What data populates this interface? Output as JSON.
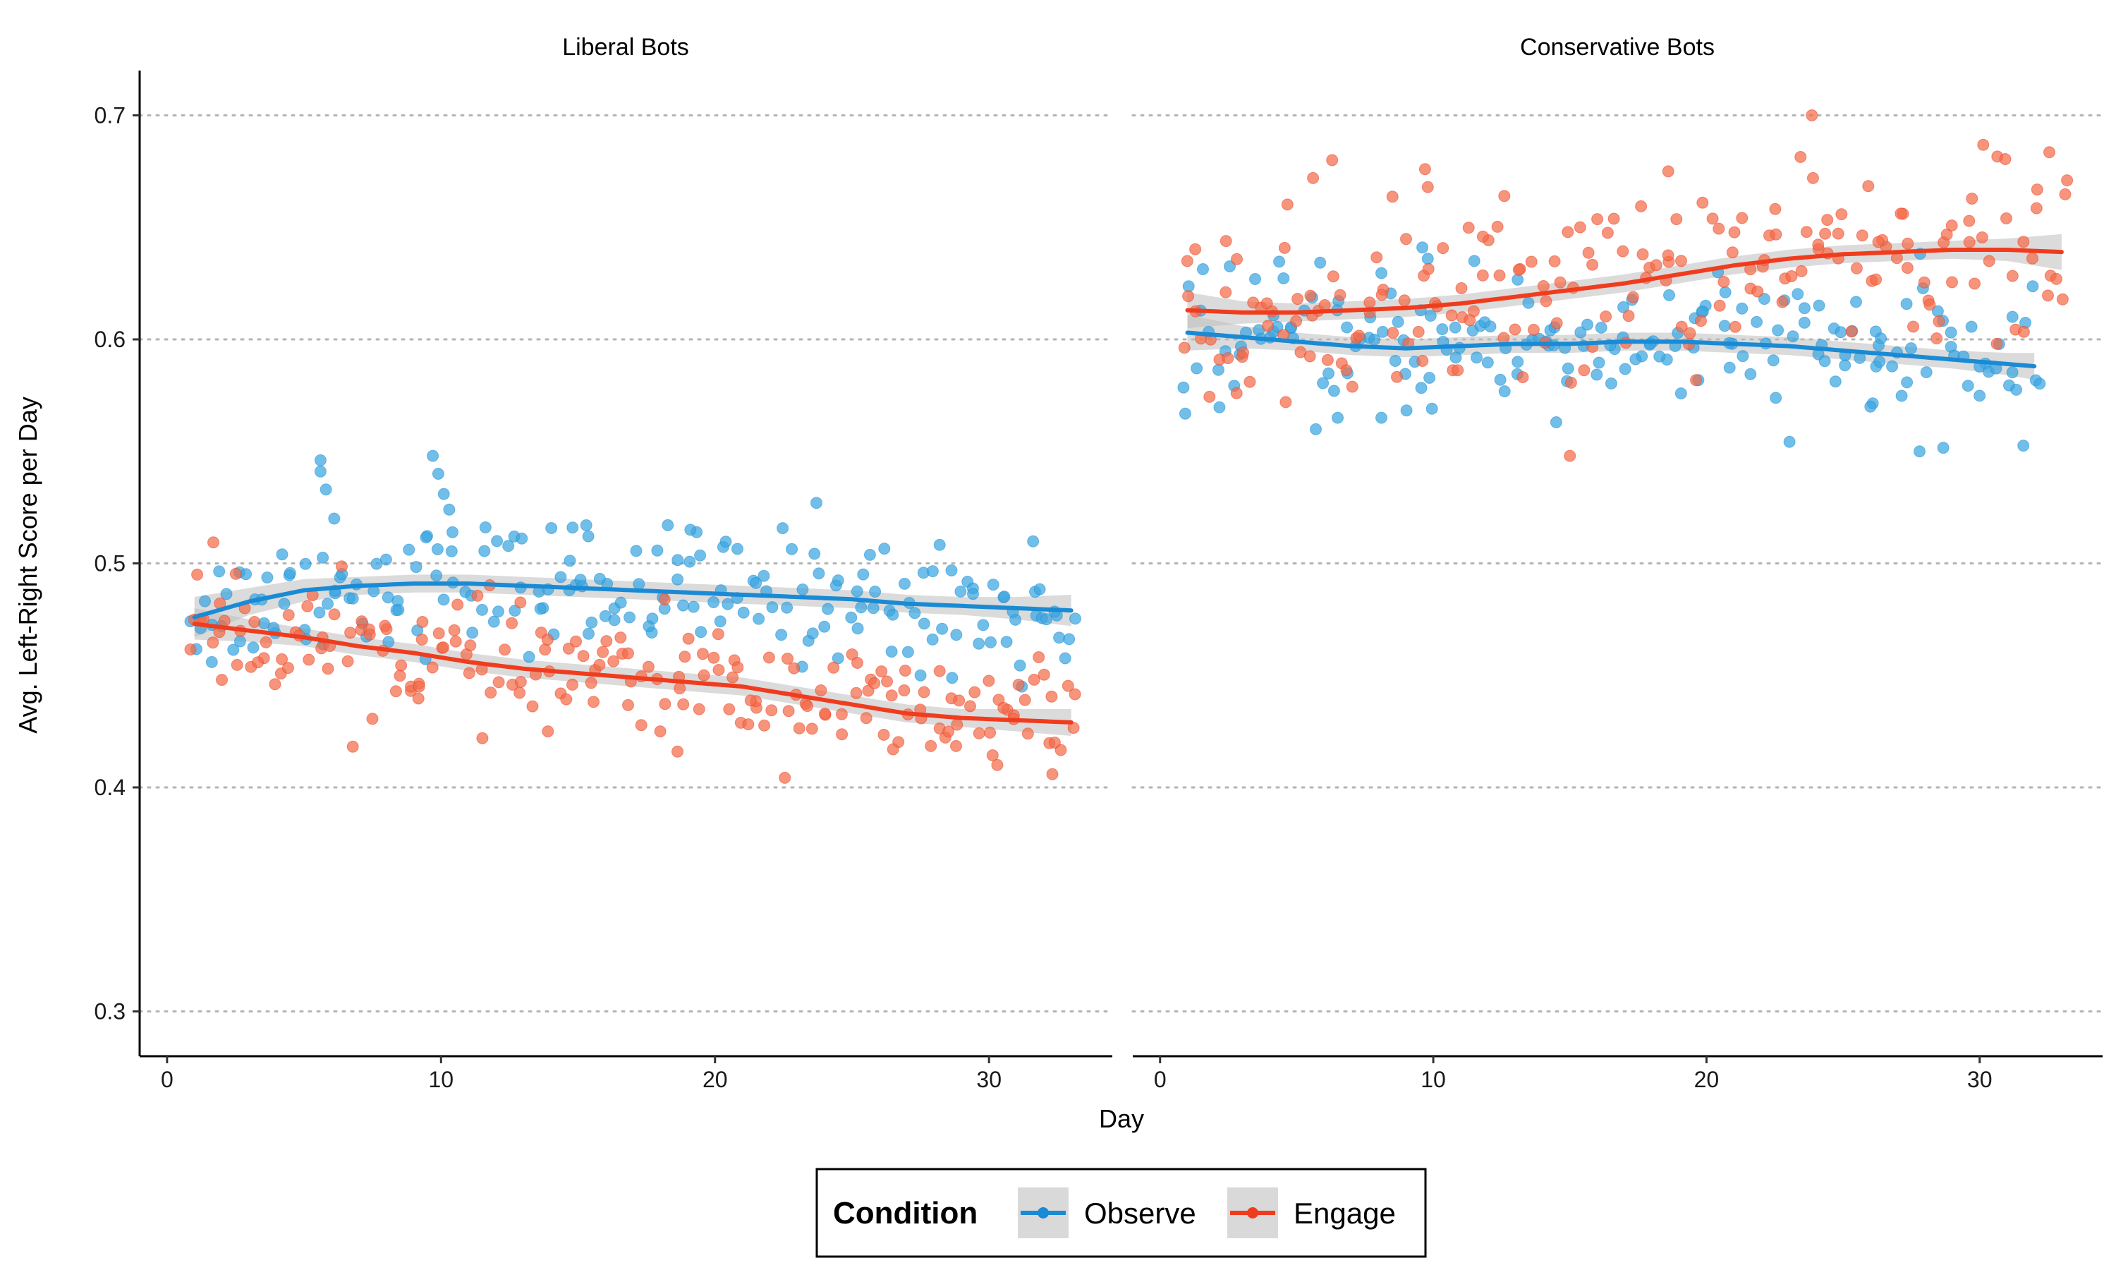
{
  "chart_data": {
    "type": "scatter",
    "xlabel": "Day",
    "ylabel": "Avg. Left-Right Score per Day",
    "ylim": [
      0.28,
      0.72
    ],
    "yticks": [
      0.3,
      0.4,
      0.5,
      0.6,
      0.7
    ],
    "xlim": [
      -1,
      34.5
    ],
    "xticks": [
      0,
      10,
      20,
      30
    ],
    "grid": "horizontal dotted",
    "legend": {
      "title": "Condition",
      "placement": "bottom",
      "entries": [
        {
          "label": "Observe",
          "color": "#1a8ad4"
        },
        {
          "label": "Engage",
          "color": "#f03c1e"
        }
      ]
    },
    "colors": {
      "observe": "#1a8ad4",
      "engage": "#f03c1e",
      "observe_point": "#3aa6e0",
      "engage_point": "#f26b4a",
      "band": "#bdbdbd"
    },
    "panels": [
      {
        "title": "Liberal Bots",
        "series": [
          {
            "name": "Observe",
            "trend_x": [
              1,
              3,
              5,
              7,
              9,
              11,
              13,
              15,
              17,
              19,
              21,
              23,
              25,
              27,
              29,
              31,
              33
            ],
            "trend_y": [
              0.476,
              0.483,
              0.488,
              0.49,
              0.491,
              0.491,
              0.49,
              0.489,
              0.488,
              0.487,
              0.486,
              0.485,
              0.484,
              0.482,
              0.481,
              0.48,
              0.479
            ],
            "band_halfwidth": [
              0.009,
              0.006,
              0.005,
              0.004,
              0.004,
              0.004,
              0.004,
              0.004,
              0.004,
              0.004,
              0.004,
              0.004,
              0.004,
              0.004,
              0.004,
              0.005,
              0.007
            ],
            "noise": 0.014,
            "outliers": [
              [
                5.6,
                0.546
              ],
              [
                5.6,
                0.541
              ],
              [
                5.8,
                0.533
              ],
              [
                6.1,
                0.52
              ],
              [
                9.7,
                0.548
              ],
              [
                9.9,
                0.54
              ],
              [
                10.1,
                0.531
              ],
              [
                10.3,
                0.524
              ],
              [
                14.8,
                0.516
              ],
              [
                15.3,
                0.517
              ],
              [
                19.1,
                0.515
              ],
              [
                23.7,
                0.527
              ],
              [
                27.5,
                0.45
              ],
              [
                31.2,
                0.445
              ]
            ]
          },
          {
            "name": "Engage",
            "trend_x": [
              1,
              3,
              5,
              7,
              9,
              11,
              13,
              15,
              17,
              19,
              21,
              23,
              25,
              27,
              29,
              31,
              33
            ],
            "trend_y": [
              0.473,
              0.47,
              0.467,
              0.463,
              0.46,
              0.456,
              0.453,
              0.451,
              0.449,
              0.447,
              0.445,
              0.441,
              0.437,
              0.433,
              0.431,
              0.43,
              0.429
            ],
            "band_halfwidth": [
              0.007,
              0.005,
              0.004,
              0.004,
              0.004,
              0.004,
              0.004,
              0.004,
              0.004,
              0.004,
              0.004,
              0.004,
              0.004,
              0.004,
              0.004,
              0.005,
              0.006
            ],
            "noise": 0.013,
            "outliers": [
              [
                1.1,
                0.495
              ],
              [
                2.0,
                0.448
              ],
              [
                8.9,
                0.445
              ],
              [
                9.2,
                0.445
              ],
              [
                13.9,
                0.425
              ],
              [
                18.0,
                0.425
              ],
              [
                26.5,
                0.417
              ],
              [
                30.3,
                0.41
              ],
              [
                32.4,
                0.42
              ]
            ]
          }
        ]
      },
      {
        "title": "Conservative Bots",
        "series": [
          {
            "name": "Observe",
            "trend_x": [
              1,
              3,
              5,
              7,
              9,
              11,
              13,
              15,
              17,
              19,
              21,
              23,
              25,
              27,
              29,
              31,
              32
            ],
            "trend_y": [
              0.603,
              0.601,
              0.599,
              0.597,
              0.596,
              0.597,
              0.598,
              0.598,
              0.599,
              0.599,
              0.598,
              0.597,
              0.595,
              0.593,
              0.591,
              0.589,
              0.588
            ],
            "band_halfwidth": [
              0.008,
              0.005,
              0.004,
              0.004,
              0.004,
              0.004,
              0.004,
              0.004,
              0.004,
              0.004,
              0.004,
              0.004,
              0.004,
              0.004,
              0.004,
              0.005,
              0.006
            ],
            "noise": 0.015,
            "outliers": [
              [
                6.5,
                0.565
              ],
              [
                8.1,
                0.565
              ],
              [
                14.5,
                0.563
              ],
              [
                27.8,
                0.55
              ],
              [
                9.6,
                0.641
              ],
              [
                9.8,
                0.636
              ],
              [
                11.5,
                0.635
              ],
              [
                26.0,
                0.57
              ]
            ]
          },
          {
            "name": "Engage",
            "trend_x": [
              1,
              3,
              5,
              7,
              9,
              11,
              13,
              15,
              17,
              19,
              21,
              23,
              25,
              27,
              29,
              31,
              33
            ],
            "trend_y": [
              0.613,
              0.612,
              0.612,
              0.613,
              0.614,
              0.616,
              0.619,
              0.622,
              0.625,
              0.629,
              0.633,
              0.636,
              0.638,
              0.639,
              0.64,
              0.64,
              0.639
            ],
            "band_halfwidth": [
              0.008,
              0.005,
              0.004,
              0.004,
              0.004,
              0.004,
              0.004,
              0.004,
              0.004,
              0.004,
              0.004,
              0.004,
              0.004,
              0.004,
              0.004,
              0.005,
              0.008
            ],
            "noise": 0.02,
            "outliers": [
              [
                5.6,
                0.672
              ],
              [
                6.3,
                0.68
              ],
              [
                9.7,
                0.676
              ],
              [
                9.8,
                0.668
              ],
              [
                12.6,
                0.664
              ],
              [
                18.6,
                0.675
              ],
              [
                23.9,
                0.672
              ],
              [
                15.0,
                0.548
              ],
              [
                33.2,
                0.671
              ],
              [
                2.8,
                0.576
              ],
              [
                4.6,
                0.572
              ]
            ]
          }
        ]
      }
    ]
  }
}
